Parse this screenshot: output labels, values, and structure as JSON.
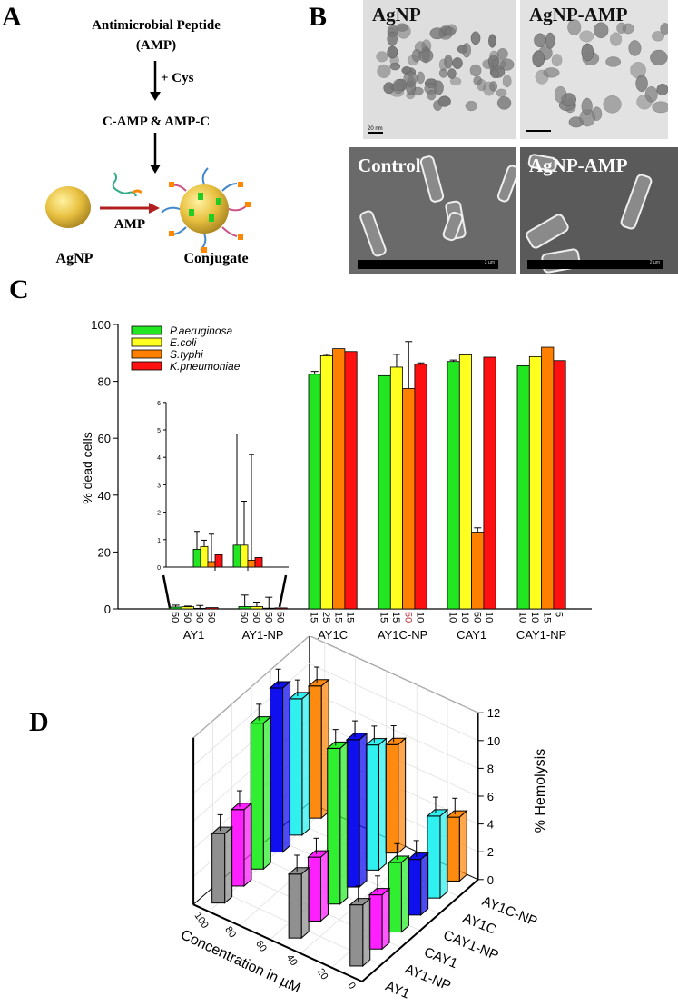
{
  "panels": {
    "a": {
      "letter": "A",
      "title_line1": "Antimicrobial Peptide",
      "title_line2": "(AMP)",
      "step1_label": "+ Cys",
      "intermediate": "C-AMP & AMP-C",
      "arrow_label": "AMP",
      "left_label": "AgNP",
      "right_label": "Conjugate",
      "arrow_color": "#b02020",
      "particle_color": "#e8c040"
    },
    "b": {
      "letter": "B",
      "images": [
        {
          "label": "AgNP",
          "scale": "20 nm"
        },
        {
          "label": "AgNP-AMP",
          "scale": ""
        },
        {
          "label": "Control",
          "scale": "2 µm"
        },
        {
          "label": "AgNP-AMP",
          "scale": "2 µm"
        }
      ]
    },
    "c": {
      "letter": "C"
    },
    "d": {
      "letter": "D"
    }
  },
  "chart_data": [
    {
      "type": "bar",
      "panel": "C",
      "ylabel": "% dead cells",
      "ylim": [
        0,
        100
      ],
      "yticks": [
        "0",
        "20",
        "40",
        "60",
        "80",
        "100"
      ],
      "categories": [
        "AY1",
        "AY1-NP",
        "AY1C",
        "AY1C-NP",
        "CAY1",
        "CAY1-NP"
      ],
      "concentration_labels": [
        [
          "50",
          "50",
          "50",
          "50"
        ],
        [
          "50",
          "50",
          "50",
          "50"
        ],
        [
          "15",
          "25",
          "15",
          "15"
        ],
        [
          "15",
          "15",
          "50",
          "10"
        ],
        [
          "10",
          "10",
          "50",
          "10"
        ],
        [
          "10",
          "10",
          "15",
          "5"
        ]
      ],
      "highlight_label_color": "#c0303a",
      "legend_position": "top-left",
      "series": [
        {
          "name": "P.aeruginosa",
          "color": "#22e622",
          "values": [
            0.65,
            0.8,
            82.5,
            82,
            87,
            85.5
          ],
          "err_top": [
            1.3,
            4.85,
            83.5,
            null,
            87.5,
            null
          ]
        },
        {
          "name": "E.coli",
          "color": "#ffff20",
          "values": [
            0.75,
            0.8,
            89,
            85,
            89.3,
            88.7
          ],
          "err_top": [
            0.98,
            2.4,
            89.5,
            89.5,
            null,
            null
          ]
        },
        {
          "name": "S.typhi",
          "color": "#ff8000",
          "values": [
            0.2,
            0.25,
            91.5,
            77.5,
            27,
            92
          ],
          "err_top": [
            1.2,
            4.1,
            null,
            94,
            28.5,
            null
          ]
        },
        {
          "name": "K.pneumoniae",
          "color": "#ff1010",
          "values": [
            0.45,
            0.35,
            90.5,
            86,
            88.5,
            87.3
          ],
          "err_top": [
            null,
            null,
            null,
            86.5,
            null,
            null
          ]
        }
      ],
      "inset": {
        "categories": [
          "AY1",
          "AY1-NP"
        ],
        "ylim": [
          0,
          6
        ],
        "yticks": [
          "0",
          "1",
          "2",
          "3",
          "4",
          "5",
          "6"
        ]
      },
      "grid": false
    },
    {
      "type": "bar3d",
      "panel": "D",
      "zlabel": "% Hemolysis",
      "xlabel": "Concentration in µM",
      "zlim": [
        0,
        12
      ],
      "zticks": [
        "0",
        "2",
        "4",
        "6",
        "8",
        "10",
        "12"
      ],
      "xticks": [
        "0",
        "20",
        "40",
        "60",
        "80",
        "100"
      ],
      "concentrations": [
        100,
        50,
        10
      ],
      "grid": true,
      "series": [
        {
          "name": "AY1",
          "color": "#909090",
          "values": [
            5.0,
            4.6,
            4.4
          ]
        },
        {
          "name": "AY1-NP",
          "color": "#ff20ff",
          "values": [
            5.5,
            4.6,
            3.9
          ]
        },
        {
          "name": "CAY1",
          "color": "#30ee30",
          "values": [
            10.5,
            11.2,
            5.0
          ]
        },
        {
          "name": "CAY1-NP",
          "color": "#1010ee",
          "values": [
            11.8,
            10.6,
            4.0
          ]
        },
        {
          "name": "AY1C",
          "color": "#30f0f0",
          "values": [
            9.8,
            9.0,
            5.9
          ]
        },
        {
          "name": "AY1C-NP",
          "color": "#ff8a10",
          "values": [
            9.5,
            7.8,
            4.6
          ]
        }
      ]
    }
  ]
}
